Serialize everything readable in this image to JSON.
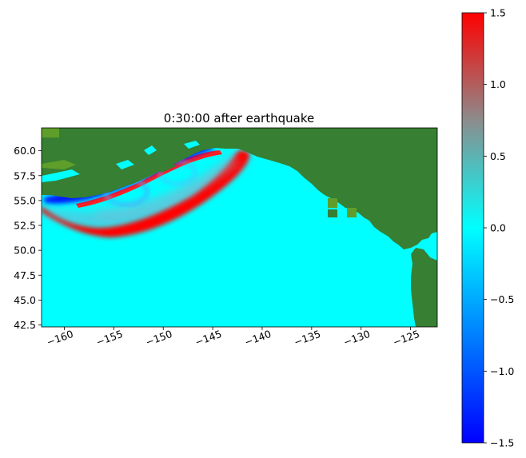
{
  "chart_data": {
    "type": "heatmap",
    "title": "0:30:00 after earthquake",
    "xlabel": "",
    "ylabel": "",
    "xlim": [
      -162.3,
      -122.3
    ],
    "ylim": [
      42.3,
      62.3
    ],
    "xticks": [
      -160,
      -155,
      -150,
      -145,
      -140,
      -135,
      -130,
      -125
    ],
    "xtick_labels": [
      "−160",
      "−155",
      "−150",
      "−145",
      "−140",
      "−135",
      "−130",
      "−125"
    ],
    "yticks": [
      60.0,
      57.5,
      55.0,
      52.5,
      50.0,
      47.5,
      45.0,
      42.5
    ],
    "ytick_labels": [
      "60.0",
      "57.5",
      "55.0",
      "52.5",
      "50.0",
      "47.5",
      "45.0",
      "42.5"
    ],
    "colorbar": {
      "range": [
        -1.5,
        1.5
      ],
      "ticks": [
        1.5,
        1.0,
        0.5,
        0.0,
        -0.5,
        -1.0,
        -1.5
      ],
      "tick_labels": [
        "1.5",
        "1.0",
        "0.5",
        "0.0",
        "−0.5",
        "−1.0",
        "−1.5"
      ],
      "colors": [
        "#0000ff",
        "#00ffff",
        "#ff0000"
      ]
    },
    "land_color": "#367f33",
    "ocean_color": "#00ffff",
    "grid": false
  }
}
